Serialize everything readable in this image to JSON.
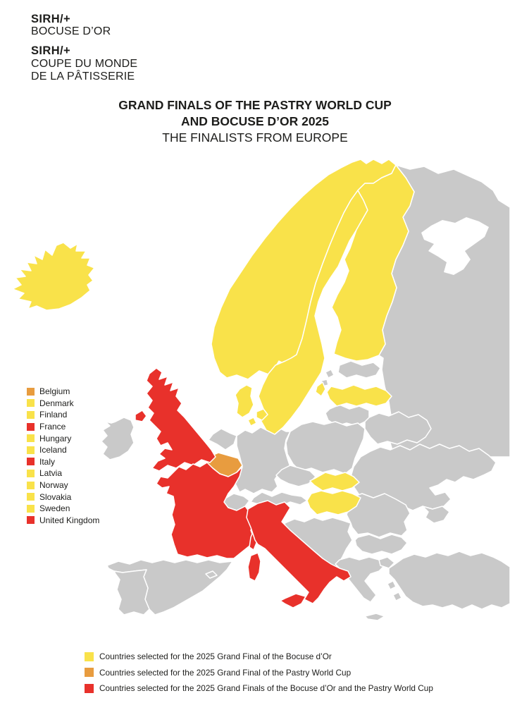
{
  "logo": {
    "brand1": "SIRH/+",
    "brand1_sub": "BOCUSE D’OR",
    "brand2": "SIRH/+",
    "brand2_sub_line1": "COUPE DU MONDE",
    "brand2_sub_line2": "DE LA PÂTISSERIE"
  },
  "title": {
    "line1": "GRAND FINALS OF THE PASTRY WORLD CUP",
    "line2": "AND BOCUSE D’OR 2025",
    "line3": "THE FINALISTS FROM EUROPE"
  },
  "colors": {
    "bocuse_yellow": "#F9E24A",
    "pastry_orange": "#E89C3F",
    "both_red": "#E8312B",
    "land_gray": "#C9C9C9",
    "sea_white": "#FFFFFF",
    "text_black": "#1D1D1B"
  },
  "country_legend": [
    {
      "label": "Belgium",
      "status": "pastry"
    },
    {
      "label": "Denmark",
      "status": "bocuse"
    },
    {
      "label": "Finland",
      "status": "bocuse"
    },
    {
      "label": "France",
      "status": "both"
    },
    {
      "label": "Hungary",
      "status": "bocuse"
    },
    {
      "label": "Iceland",
      "status": "bocuse"
    },
    {
      "label": "Italy",
      "status": "both"
    },
    {
      "label": "Latvia",
      "status": "bocuse"
    },
    {
      "label": "Norway",
      "status": "bocuse"
    },
    {
      "label": "Slovakia",
      "status": "bocuse"
    },
    {
      "label": "Sweden",
      "status": "bocuse"
    },
    {
      "label": "United Kingdom",
      "status": "both"
    }
  ],
  "map_legend": [
    {
      "label": "Countries selected for the 2025 Grand Final of the Bocuse d’Or",
      "status": "bocuse"
    },
    {
      "label": "Countries selected for the 2025 Grand Final of the Pastry World Cup",
      "status": "pastry"
    },
    {
      "label": "Countries selected for the 2025 Grand Finals of the Bocuse d’Or and the Pastry World Cup",
      "status": "both"
    }
  ],
  "map": {
    "status_by_country": {
      "iceland": "bocuse",
      "norway": "bocuse",
      "sweden": "bocuse",
      "finland": "bocuse",
      "denmark": "bocuse",
      "latvia": "bocuse",
      "slovakia": "bocuse",
      "hungary": "bocuse",
      "belgium": "pastry",
      "united-kingdom": "both",
      "france": "both",
      "italy": "both"
    }
  }
}
